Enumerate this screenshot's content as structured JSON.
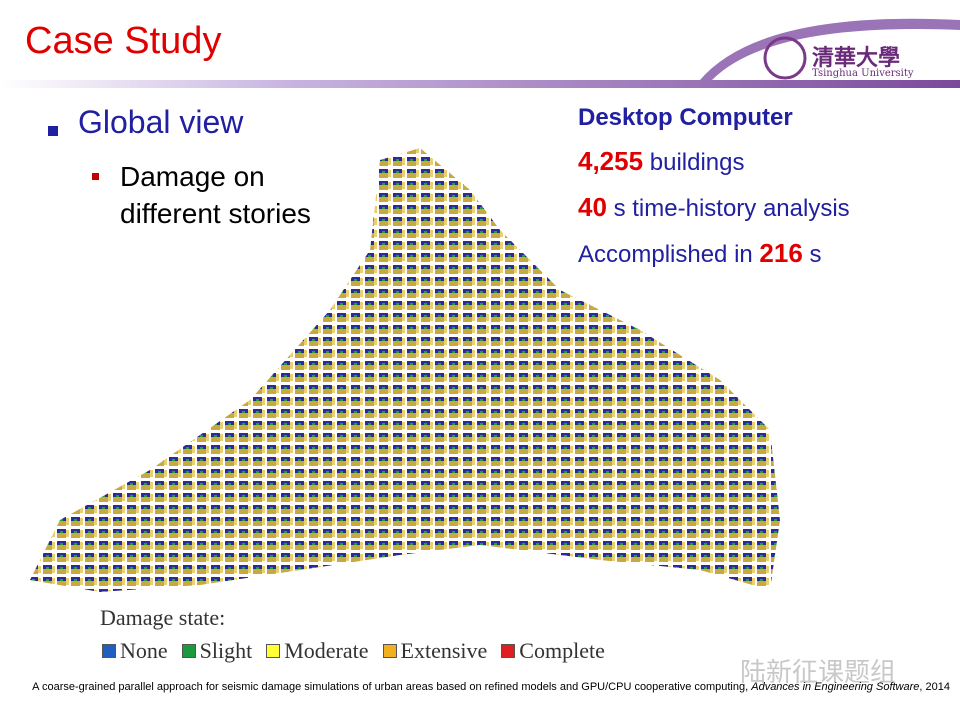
{
  "header": {
    "title": "Case Study",
    "logo_cn": "清華大學",
    "logo_en": "Tsinghua University"
  },
  "bullets": {
    "main": "Global view",
    "sub": "Damage on different stories"
  },
  "stats": {
    "heading": "Desktop Computer",
    "line1": {
      "number": "4,255",
      "text": "buildings"
    },
    "line2": {
      "number": "40",
      "text": "s time-history analysis"
    },
    "line3": {
      "prefix": "Accomplished in",
      "number": "216",
      "suffix": "s"
    }
  },
  "legend": {
    "title": "Damage state:",
    "items": [
      {
        "label": "None",
        "color": "#1f5fc0"
      },
      {
        "label": "Slight",
        "color": "#1a9a3a"
      },
      {
        "label": "Moderate",
        "color": "#ffff33"
      },
      {
        "label": "Extensive",
        "color": "#f0b020"
      },
      {
        "label": "Complete",
        "color": "#e02020"
      }
    ]
  },
  "citation": {
    "text": "A coarse-grained parallel approach for seismic damage simulations of urban areas based on refined models and GPU/CPU cooperative computing,",
    "journal": "Advances in Engineering Software",
    "year": ", 2014"
  },
  "watermark": "陆新征课题组"
}
